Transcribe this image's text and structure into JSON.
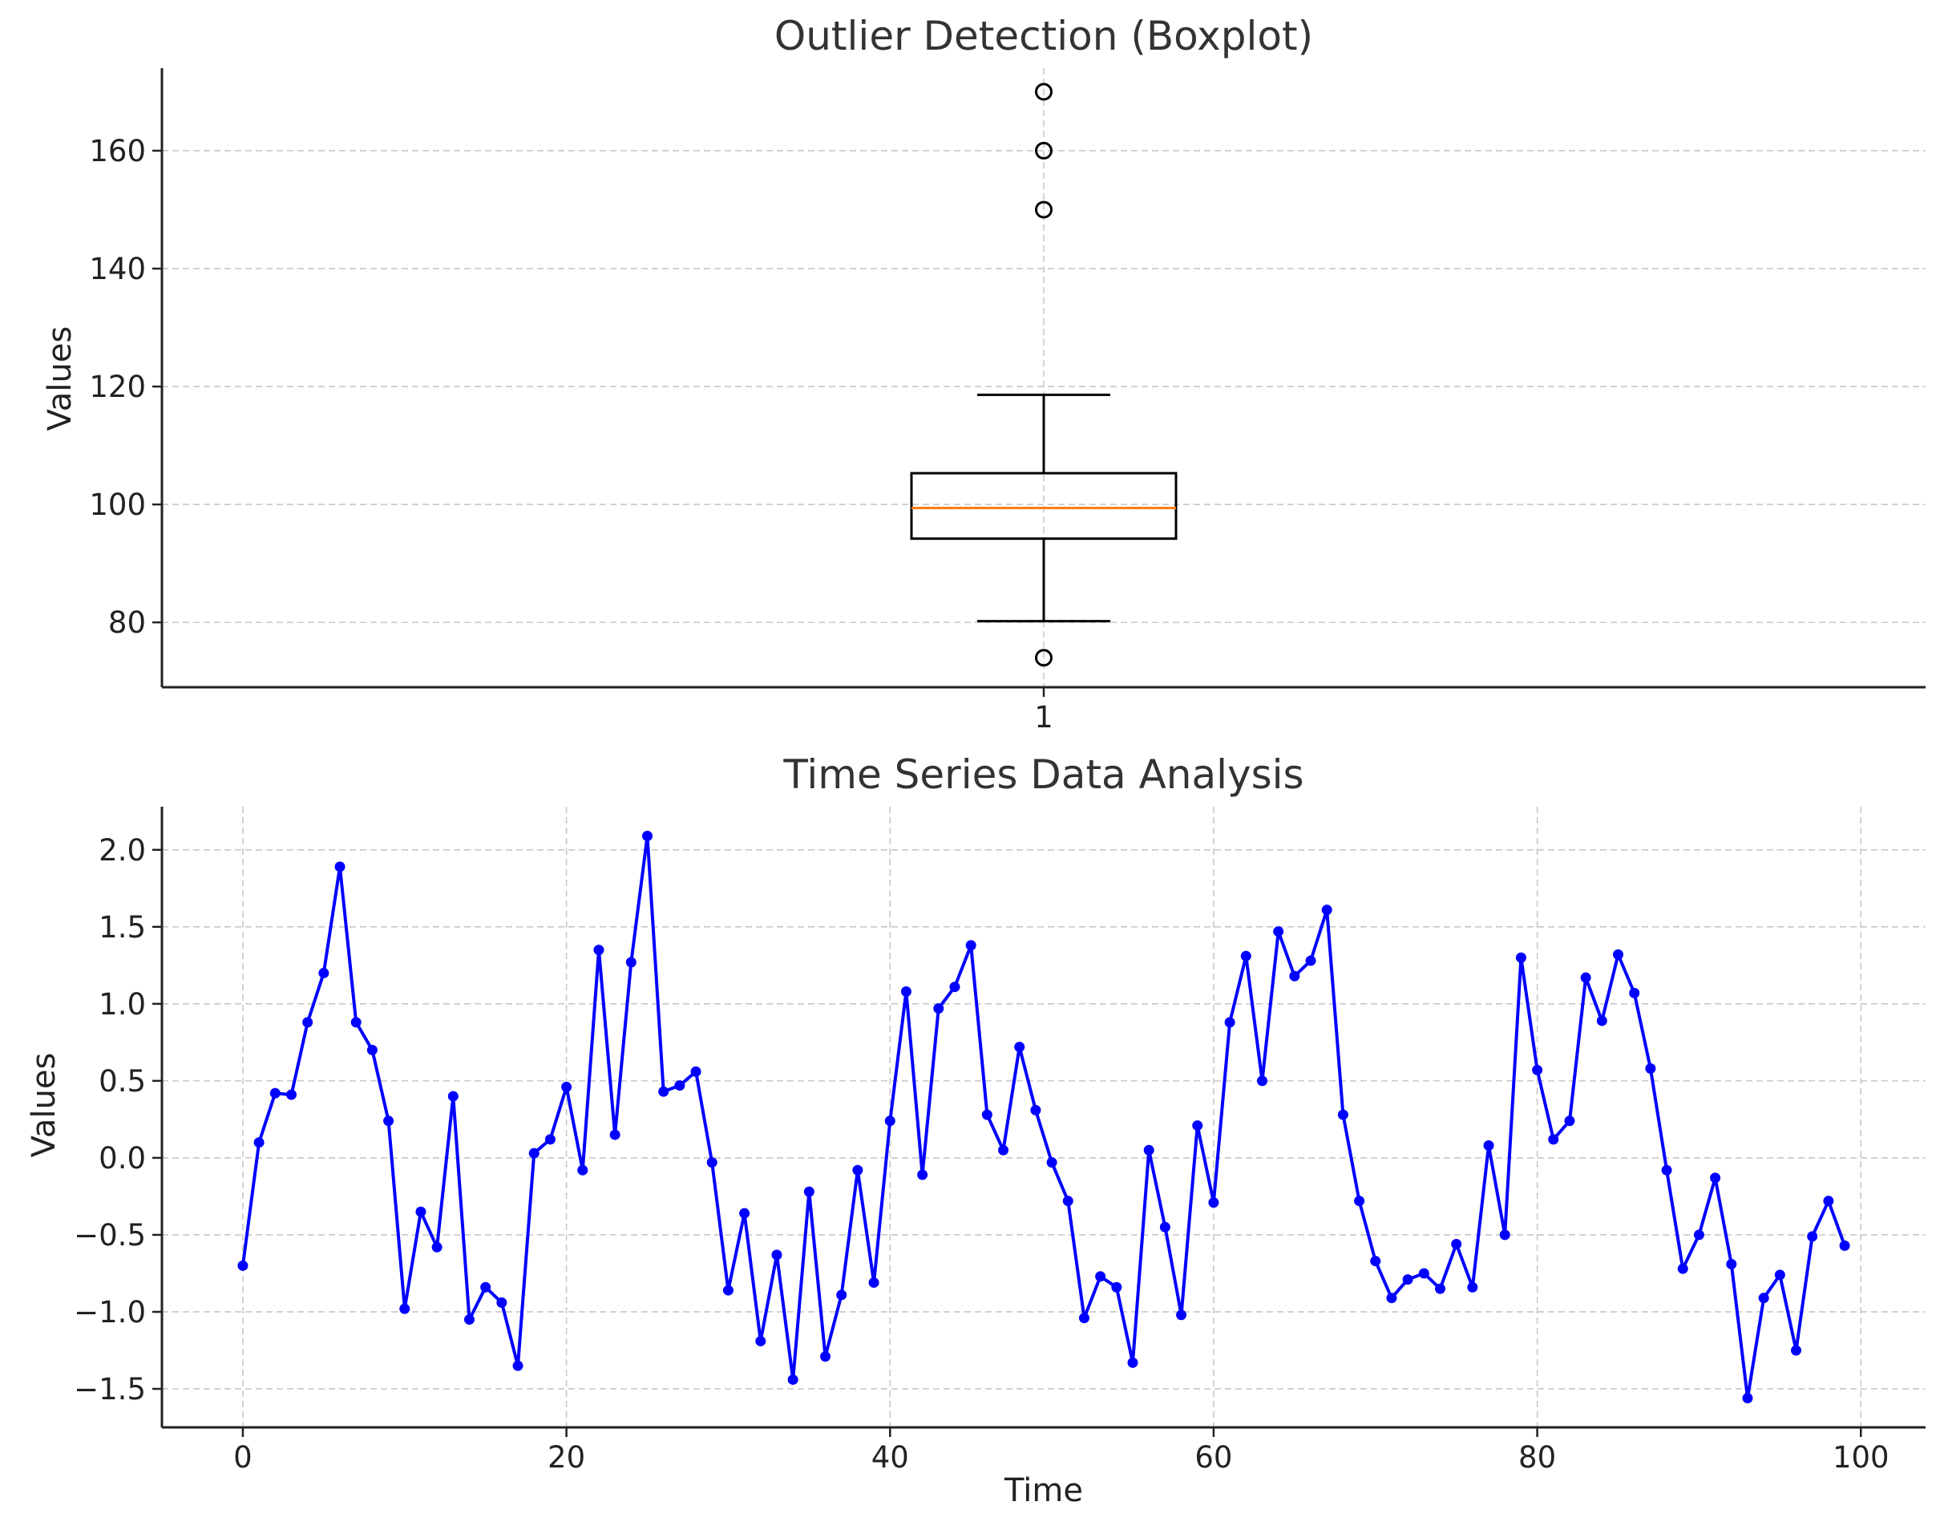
{
  "chart_data": [
    {
      "type": "box",
      "title": "Outlier Detection (Boxplot)",
      "xlabel": "",
      "ylabel": "Values",
      "categories": [
        "1"
      ],
      "ylim": [
        69,
        174
      ],
      "yticks": [
        80,
        100,
        120,
        140,
        160
      ],
      "grid": true,
      "box": {
        "whisker_low": 80.2,
        "q1": 94.2,
        "median": 99.4,
        "q3": 105.3,
        "whisker_high": 118.6,
        "outliers": [
          170,
          160,
          150,
          74
        ]
      },
      "colors": {
        "box": "#000000",
        "median": "#ff7f0e"
      }
    },
    {
      "type": "line",
      "title": "Time Series Data Analysis",
      "xlabel": "Time",
      "ylabel": "Values",
      "xlim": [
        -5,
        104
      ],
      "ylim": [
        -1.75,
        2.28
      ],
      "xticks": [
        0,
        20,
        40,
        60,
        80,
        100
      ],
      "yticks": [
        -1.5,
        -1.0,
        -0.5,
        0.0,
        0.5,
        1.0,
        1.5,
        2.0
      ],
      "ytick_labels": [
        "−1.5",
        "−1.0",
        "−0.5",
        "0.0",
        "0.5",
        "1.0",
        "1.5",
        "2.0"
      ],
      "grid": true,
      "series": [
        {
          "color": "#0000ff",
          "marker": "circle",
          "x": [
            0,
            1,
            2,
            3,
            4,
            5,
            6,
            7,
            8,
            9,
            10,
            11,
            12,
            13,
            14,
            15,
            16,
            17,
            18,
            19,
            20,
            21,
            22,
            23,
            24,
            25,
            26,
            27,
            28,
            29,
            30,
            31,
            32,
            33,
            34,
            35,
            36,
            37,
            38,
            39,
            40,
            41,
            42,
            43,
            44,
            45,
            46,
            47,
            48,
            49,
            50,
            51,
            52,
            53,
            54,
            55,
            56,
            57,
            58,
            59,
            60,
            61,
            62,
            63,
            64,
            65,
            66,
            67,
            68,
            69,
            70,
            71,
            72,
            73,
            74,
            75,
            76,
            77,
            78,
            79,
            80,
            81,
            82,
            83,
            84,
            85,
            86,
            87,
            88,
            89,
            90,
            91,
            92,
            93,
            94,
            95,
            96,
            97,
            98,
            99
          ],
          "values": [
            -0.7,
            0.1,
            0.42,
            0.41,
            0.88,
            1.2,
            1.89,
            0.88,
            0.7,
            0.24,
            -0.98,
            -0.35,
            -0.58,
            0.4,
            -1.05,
            -0.84,
            -0.94,
            -1.35,
            0.03,
            0.12,
            0.46,
            -0.08,
            1.35,
            0.15,
            1.27,
            2.09,
            0.43,
            0.47,
            0.56,
            -0.03,
            -0.86,
            -0.36,
            -1.19,
            -0.63,
            -1.44,
            -0.22,
            -1.29,
            -0.89,
            -0.08,
            -0.81,
            0.24,
            1.08,
            -0.11,
            0.97,
            1.11,
            1.38,
            0.28,
            0.05,
            0.72,
            0.31,
            -0.03,
            -0.28,
            -1.04,
            -0.77,
            -0.84,
            -1.33,
            0.05,
            -0.45,
            -1.02,
            0.21,
            -0.29,
            0.88,
            1.31,
            0.5,
            1.47,
            1.18,
            1.28,
            1.61,
            0.28,
            -0.28,
            -0.67,
            -0.91,
            -0.79,
            -0.75,
            -0.85,
            -0.56,
            -0.84,
            0.08,
            -0.5,
            1.3,
            0.57,
            0.12,
            0.24,
            1.17,
            0.89,
            1.32,
            1.07,
            0.58,
            -0.08,
            -0.72,
            -0.5,
            -0.13,
            -0.69,
            -1.56,
            -0.91,
            -0.76,
            -1.25,
            -0.51,
            -0.28,
            -0.57
          ]
        }
      ]
    }
  ]
}
